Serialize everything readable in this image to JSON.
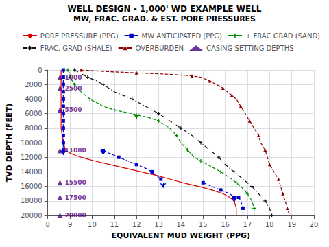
{
  "chart_data": {
    "type": "line",
    "title": "WELL DESIGN - 1,000' WD EXAMPLE WELL",
    "subtitle": "MW, FRAC. GRAD. & EST. PORE PRESSURES",
    "xlabel": "EQUIVALENT MUD WEIGHT (PPG)",
    "ylabel": "TVD DEPTH (FEET)",
    "xlim": [
      8,
      20
    ],
    "ylim": [
      20000,
      0
    ],
    "xticks": [
      8,
      9,
      10,
      11,
      12,
      13,
      14,
      15,
      16,
      17,
      18,
      19,
      20
    ],
    "yticks": [
      0,
      2000,
      4000,
      6000,
      8000,
      10000,
      12000,
      14000,
      16000,
      18000,
      20000
    ],
    "grid": true,
    "legend": "upper right",
    "series": [
      {
        "name": "PORE PRESSURE (PPG)",
        "type": "line",
        "color": "#dd0000",
        "line_style": "solid",
        "marker": "none",
        "x": [
          8.6,
          8.6,
          8.6,
          8.6,
          8.6,
          8.6,
          8.6,
          8.6,
          8.6,
          8.6,
          8.6,
          8.6,
          8.6,
          8.6,
          8.65,
          8.7,
          8.75,
          8.8,
          8.9,
          9.05,
          9.25,
          9.5,
          9.8,
          10.1,
          10.8,
          11.5,
          12.2,
          12.9,
          13.5,
          14.1,
          14.8,
          15.4,
          15.9,
          16.2,
          16.4,
          16.5,
          16.5
        ],
        "values": [
          0,
          200,
          400,
          600,
          800,
          1000,
          1500,
          2000,
          3000,
          4000,
          5000,
          6000,
          7000,
          8000,
          9000,
          10000,
          10500,
          11000,
          11250,
          11500,
          11750,
          12000,
          12250,
          12500,
          13000,
          13500,
          14000,
          14500,
          15000,
          15500,
          16000,
          16500,
          17000,
          17500,
          18000,
          19000,
          20000
        ]
      },
      {
        "name": "MW ANTICIPATED (PPG)",
        "type": "line",
        "color": "#0000cc",
        "line_style": "dashed",
        "marker": "square",
        "segments": [
          {
            "x": [
              8.7,
              8.7,
              8.7,
              8.7,
              8.7,
              8.7,
              8.7,
              8.7,
              8.7,
              8.7,
              8.7,
              8.7,
              8.7,
              8.7,
              8.7,
              8.7,
              8.7,
              8.7,
              8.7,
              8.7,
              8.7,
              8.7,
              8.7,
              8.7
            ],
            "values": [
              0,
              500,
              1000,
              1500,
              2000,
              2500,
              3000,
              3500,
              4000,
              4500,
              5000,
              5500,
              6000,
              6500,
              7000,
              7500,
              8000,
              8500,
              9000,
              9500,
              10000,
              10500,
              11000,
              11080
            ]
          },
          {
            "x": [
              10.5,
              10.8,
              11.2,
              11.6,
              12.0,
              12.4,
              12.7,
              12.9,
              13.1,
              13.2
            ],
            "values": [
              11080,
              11500,
              12000,
              12500,
              13000,
              13500,
              14000,
              14500,
              15000,
              15500
            ]
          },
          {
            "x": [
              15.0,
              15.4,
              15.8,
              16.2,
              16.4
            ],
            "values": [
              15500,
              16000,
              16500,
              17000,
              17500
            ]
          },
          {
            "x": [
              16.6,
              16.7,
              16.8,
              16.8
            ],
            "values": [
              17500,
              18000,
              19000,
              20000
            ]
          }
        ],
        "arrows": [
          [
            8.7,
            11080,
            11700
          ],
          [
            10.5,
            11080,
            11700
          ],
          [
            13.2,
            15500,
            16200
          ],
          [
            16.4,
            17500,
            18200
          ]
        ]
      },
      {
        "name": "+ FRAC GRAD (SAND)",
        "type": "line",
        "color": "#008800",
        "line_style": "dashed",
        "marker": "plus",
        "x": [
          8.9,
          9.0,
          9.0,
          9.1,
          9.2,
          9.5,
          9.9,
          10.5,
          11.0,
          11.8,
          12.0,
          12.5,
          13.0,
          13.5,
          13.8,
          14.0,
          14.3,
          14.6,
          14.9,
          15.2,
          15.8,
          16.3,
          16.5,
          16.7,
          17.0,
          17.2,
          17.3,
          17.3
        ],
        "values": [
          0,
          500,
          1000,
          1500,
          2000,
          3000,
          4000,
          5000,
          5500,
          6000,
          6200,
          6500,
          7000,
          8000,
          9000,
          10000,
          11000,
          12000,
          12500,
          13000,
          14000,
          15000,
          15500,
          16000,
          17000,
          18000,
          19000,
          20000
        ],
        "arrows": [
          [
            12.0,
            6200,
            6700
          ]
        ]
      },
      {
        "name": "FRAC. GRAD (SHALE)",
        "type": "line",
        "color": "#111111",
        "line_style": "dashdot",
        "marker": "plus",
        "x": [
          9.2,
          9.5,
          9.8,
          10.2,
          10.5,
          11.0,
          11.8,
          12.4,
          13.0,
          13.5,
          14.0,
          14.5,
          14.9,
          15.3,
          15.7,
          16.0,
          16.4,
          16.8,
          17.2,
          17.5,
          17.8,
          18.0,
          18.1
        ],
        "values": [
          0,
          500,
          1000,
          1500,
          2000,
          3000,
          4000,
          5000,
          6000,
          7000,
          8000,
          9000,
          10000,
          11000,
          12000,
          13000,
          14000,
          15000,
          16000,
          17000,
          18000,
          19000,
          20000
        ]
      },
      {
        "name": "OVERBURDEN",
        "type": "line",
        "color": "#8b0000",
        "line_style": "dashed",
        "marker": "triangle",
        "x": [
          9.5,
          10.5,
          12.0,
          13.5,
          14.5,
          14.9,
          15.3,
          15.6,
          15.9,
          16.1,
          16.3,
          16.5,
          16.7,
          16.9,
          17.1,
          17.3,
          17.5,
          17.6,
          17.8,
          17.9,
          18.0,
          18.2,
          18.4,
          18.5,
          18.6,
          18.7,
          18.8,
          18.9
        ],
        "values": [
          0,
          200,
          400,
          600,
          800,
          1000,
          1500,
          2000,
          2500,
          3000,
          3500,
          4000,
          5000,
          6000,
          7000,
          8000,
          9000,
          10000,
          11000,
          12000,
          13000,
          14000,
          15000,
          16000,
          17000,
          18000,
          19000,
          20000
        ]
      },
      {
        "name": "CASING SETTING DEPTHS",
        "type": "scatter",
        "color": "#4B0082",
        "marker": "triangle",
        "data_labels": true,
        "x": [
          8.55,
          8.55,
          8.55,
          8.55,
          8.55,
          8.55,
          8.55
        ],
        "values": [
          1000,
          2500,
          5500,
          11080,
          15500,
          17500,
          20000
        ]
      }
    ]
  }
}
